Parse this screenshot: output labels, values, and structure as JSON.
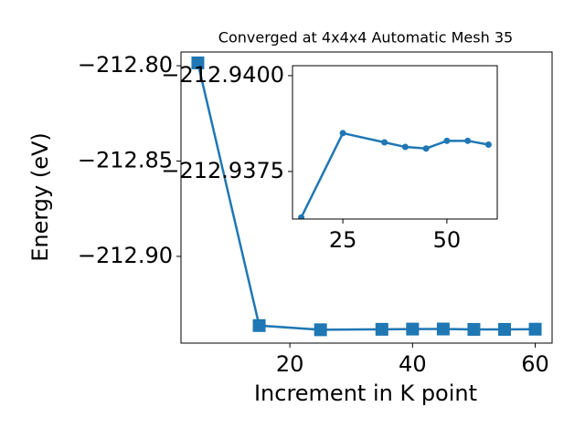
{
  "chart_data": [
    {
      "type": "line",
      "title": "Converged at 4x4x4 Automatic Mesh 35",
      "x_label": "Increment in K point",
      "y_label": "Energy (eV)",
      "x": [
        5,
        15,
        25,
        35,
        40,
        45,
        50,
        55,
        60
      ],
      "series": [
        {
          "color": "#1f77b4",
          "marker": "square",
          "values": [
            -212.7985,
            -212.9363,
            -212.9385,
            -212.93826,
            -212.93814,
            -212.9381,
            -212.9383,
            -212.9383,
            -212.9382
          ]
        }
      ],
      "xlim": [
        2.25,
        62.75
      ],
      "ylim": [
        -212.9455,
        -212.7928
      ],
      "xticks": [
        20,
        40,
        60
      ],
      "yticks": [
        {
          "value": -212.8,
          "label": "−212.80"
        },
        {
          "value": -212.85,
          "label": "−212.85"
        },
        {
          "value": -212.9,
          "label": "−212.90"
        }
      ]
    },
    {
      "type": "line",
      "x": [
        15,
        25,
        35,
        40,
        45,
        50,
        55,
        60
      ],
      "series": [
        {
          "color": "#1f77b4",
          "marker": "circle",
          "values": [
            -212.9363,
            -212.9385,
            -212.93826,
            -212.93814,
            -212.9381,
            -212.9383,
            -212.9383,
            -212.9382
          ]
        }
      ],
      "xlim": [
        12.9,
        62.1
      ],
      "ylim": [
        -212.93626,
        -212.94026
      ],
      "xticks": [
        25,
        50
      ],
      "yticks": [
        {
          "value": -212.94,
          "label": "−212.9400"
        },
        {
          "value": -212.9375,
          "label": "−212.9375"
        }
      ]
    }
  ]
}
